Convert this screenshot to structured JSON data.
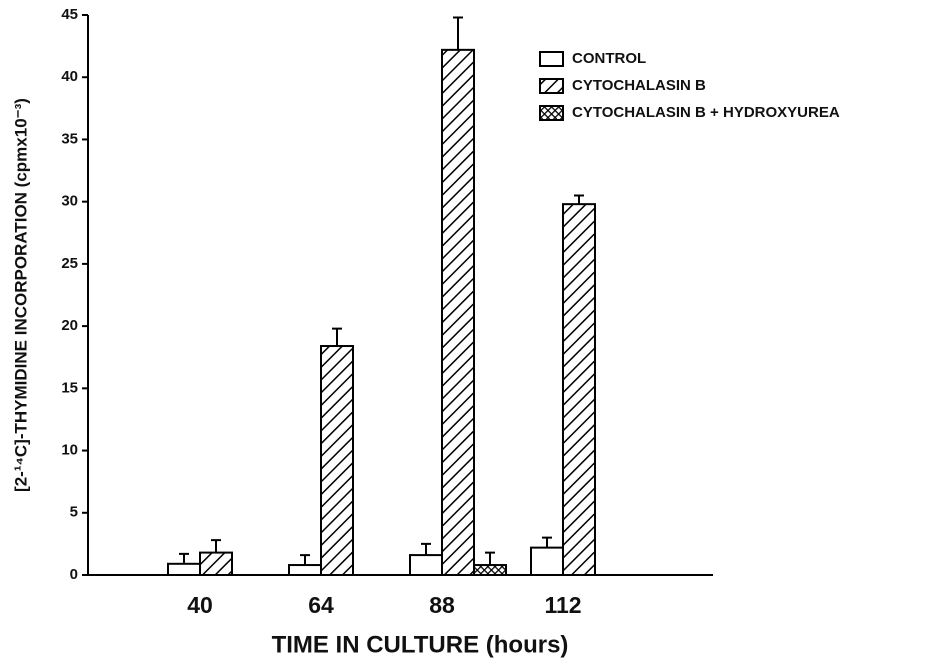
{
  "chart_data": {
    "type": "bar",
    "x_label": "TIME IN CULTURE (hours)",
    "y_label": "[2-¹⁴C]-THYMIDINE INCORPORATION (cpmx10⁻³)",
    "categories": [
      "40",
      "64",
      "88",
      "112"
    ],
    "series": [
      {
        "name": "CONTROL",
        "color": "#000000",
        "pattern": "none",
        "values": [
          0.9,
          0.8,
          1.6,
          2.2
        ],
        "errors": [
          0.8,
          0.8,
          0.9,
          0.8
        ]
      },
      {
        "name": "CYTOCHALASIN B",
        "color": "#000000",
        "pattern": "hatch",
        "values": [
          1.8,
          18.4,
          42.2,
          29.8
        ],
        "errors": [
          1.0,
          1.4,
          2.6,
          0.7
        ]
      },
      {
        "name": "CYTOCHALASIN B + HYDROXYUREA",
        "color": "#000000",
        "pattern": "crosshatch",
        "values": [
          null,
          null,
          0.8,
          null
        ],
        "errors": [
          null,
          null,
          1.0,
          null
        ]
      }
    ],
    "ylim": [
      0,
      45
    ],
    "yticks": [
      0,
      5,
      10,
      15,
      20,
      25,
      30,
      35,
      40,
      45
    ],
    "legend": "upper-right",
    "grid": false
  }
}
